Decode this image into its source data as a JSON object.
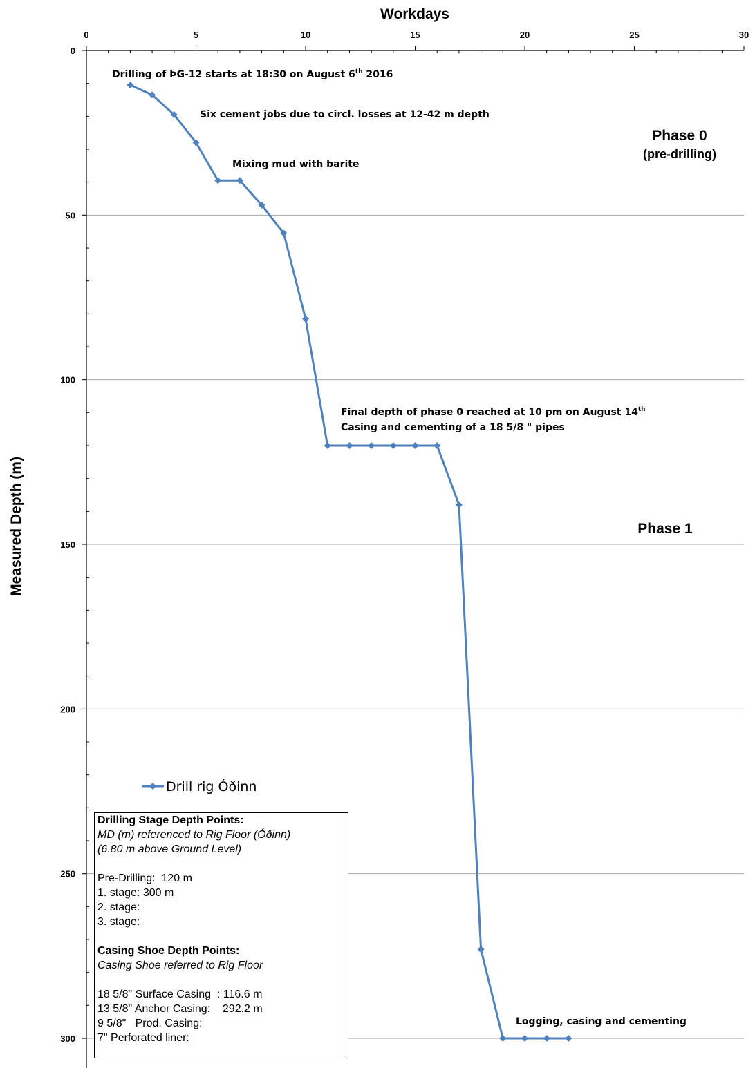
{
  "chart_data": {
    "type": "line",
    "xlabel": "Workdays",
    "ylabel": "Measured Depth (m)",
    "xlim": [
      0,
      30
    ],
    "ylim": [
      0,
      310
    ],
    "y_inverted": true,
    "x_axis_position": "top",
    "x_ticks": [
      0,
      5,
      10,
      15,
      20,
      25,
      30
    ],
    "y_ticks": [
      0,
      50,
      100,
      150,
      200,
      250,
      300
    ],
    "x_tick_labels": [
      "0",
      "5",
      "10",
      "15",
      "20",
      "25",
      "30"
    ],
    "y_tick_labels": [
      "0",
      "50",
      "100",
      "150",
      "200",
      "250",
      "300"
    ],
    "grid": "horizontal",
    "series": [
      {
        "name": "Drill rig Óðinn",
        "color": "#4f81bd",
        "marker": "diamond",
        "x": [
          2,
          3,
          4,
          5,
          6,
          7,
          8,
          9,
          10,
          11,
          12,
          13,
          14,
          15,
          16,
          17,
          18,
          19,
          20,
          21,
          22
        ],
        "y": [
          10.5,
          13.5,
          19.5,
          28,
          39.5,
          39.5,
          47,
          55.5,
          81.5,
          120,
          120,
          120,
          120,
          120,
          120,
          138,
          273,
          300,
          300,
          300,
          300
        ]
      }
    ],
    "annotations": [
      {
        "id": "start",
        "text": "Drilling of ÞG-12 starts at 18:30 on August 6",
        "sup": "th",
        "tail": " 2016"
      },
      {
        "id": "cement",
        "text": "Six cement jobs due to circl. losses at 12-42 m depth"
      },
      {
        "id": "mud",
        "text": "Mixing mud with barite"
      },
      {
        "id": "final",
        "text": "Final depth of phase 0 reached at 10 pm on August 14",
        "sup": "th"
      },
      {
        "id": "casing",
        "text": "Casing and cementing of a 18 5/8 \" pipes"
      },
      {
        "id": "logging",
        "text": "Logging, casing and cementing"
      }
    ],
    "phases": [
      {
        "title": "Phase 0",
        "subtitle": "(pre-drilling)"
      },
      {
        "title": "Phase 1",
        "subtitle": ""
      }
    ],
    "legend": {
      "position": "lower-left",
      "label": "Drill rig Óðinn"
    }
  },
  "info_box": {
    "stage_heading": "Drilling Stage Depth Points:",
    "stage_note_1": "MD (m) referenced to Rig Floor (Óðinn)",
    "stage_note_2": "(6.80 m above Ground Level)",
    "stages": [
      "Pre-Drilling:  120 m",
      "1. stage: 300 m",
      "2. stage:",
      "3. stage:"
    ],
    "casing_heading": "Casing Shoe Depth Points:",
    "casing_note": "Casing Shoe referred to Rig Floor",
    "casings": [
      "18 5/8\" Surface Casing  : 116.6 m",
      "13 5/8\" Anchor Casing:    292.2 m",
      "9 5/8\"   Prod. Casing:",
      "7\" Perforated liner:"
    ]
  }
}
